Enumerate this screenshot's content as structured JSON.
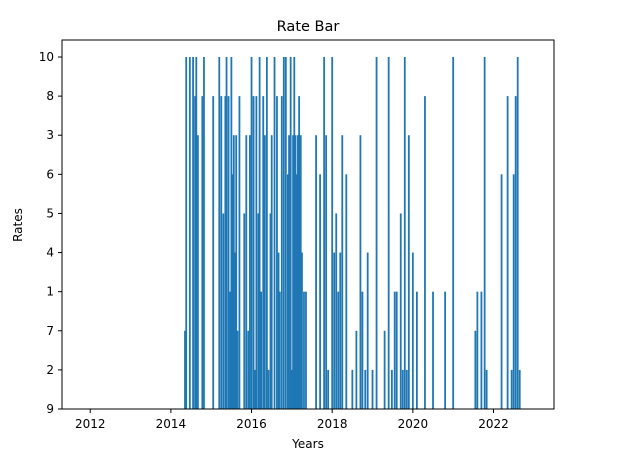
{
  "chart_data": {
    "type": "bar",
    "title": "Rate Bar",
    "xlabel": "Years",
    "ylabel": "Rates",
    "xlim": [
      2011.3,
      2023.5
    ],
    "x_ticks": [
      "2012",
      "2014",
      "2016",
      "2018",
      "2020",
      "2022"
    ],
    "x_tick_values": [
      2012,
      2014,
      2016,
      2018,
      2020,
      2022
    ],
    "y_categories": [
      "9",
      "2",
      "7",
      "1",
      "4",
      "5",
      "6",
      "3",
      "8",
      "10"
    ],
    "bar_color": "#1f77b4",
    "grid": false,
    "bars": [
      {
        "x": 2014.35,
        "y": "7"
      },
      {
        "x": 2014.38,
        "y": "10"
      },
      {
        "x": 2014.47,
        "y": "10"
      },
      {
        "x": 2014.55,
        "y": "10"
      },
      {
        "x": 2014.6,
        "y": "8"
      },
      {
        "x": 2014.63,
        "y": "10"
      },
      {
        "x": 2014.67,
        "y": "3"
      },
      {
        "x": 2014.78,
        "y": "8"
      },
      {
        "x": 2014.82,
        "y": "10"
      },
      {
        "x": 2015.05,
        "y": "8"
      },
      {
        "x": 2015.2,
        "y": "10"
      },
      {
        "x": 2015.25,
        "y": "8"
      },
      {
        "x": 2015.3,
        "y": "5"
      },
      {
        "x": 2015.35,
        "y": "8"
      },
      {
        "x": 2015.38,
        "y": "10"
      },
      {
        "x": 2015.43,
        "y": "8"
      },
      {
        "x": 2015.47,
        "y": "1"
      },
      {
        "x": 2015.5,
        "y": "10"
      },
      {
        "x": 2015.53,
        "y": "6"
      },
      {
        "x": 2015.56,
        "y": "3"
      },
      {
        "x": 2015.58,
        "y": "4"
      },
      {
        "x": 2015.62,
        "y": "3"
      },
      {
        "x": 2015.65,
        "y": "7"
      },
      {
        "x": 2015.7,
        "y": "8"
      },
      {
        "x": 2015.82,
        "y": "5"
      },
      {
        "x": 2015.87,
        "y": "3"
      },
      {
        "x": 2015.92,
        "y": "7"
      },
      {
        "x": 2015.96,
        "y": "3"
      },
      {
        "x": 2016.0,
        "y": "10"
      },
      {
        "x": 2016.05,
        "y": "8"
      },
      {
        "x": 2016.08,
        "y": "2"
      },
      {
        "x": 2016.12,
        "y": "8"
      },
      {
        "x": 2016.17,
        "y": "5"
      },
      {
        "x": 2016.2,
        "y": "10"
      },
      {
        "x": 2016.24,
        "y": "1"
      },
      {
        "x": 2016.29,
        "y": "8"
      },
      {
        "x": 2016.33,
        "y": "3"
      },
      {
        "x": 2016.38,
        "y": "10"
      },
      {
        "x": 2016.42,
        "y": "2"
      },
      {
        "x": 2016.47,
        "y": "5"
      },
      {
        "x": 2016.5,
        "y": "3"
      },
      {
        "x": 2016.57,
        "y": "10"
      },
      {
        "x": 2016.63,
        "y": "8"
      },
      {
        "x": 2016.67,
        "y": "4"
      },
      {
        "x": 2016.7,
        "y": "1"
      },
      {
        "x": 2016.75,
        "y": "8"
      },
      {
        "x": 2016.8,
        "y": "10"
      },
      {
        "x": 2016.85,
        "y": "10"
      },
      {
        "x": 2016.9,
        "y": "6"
      },
      {
        "x": 2016.93,
        "y": "3"
      },
      {
        "x": 2016.97,
        "y": "10"
      },
      {
        "x": 2017.0,
        "y": "2"
      },
      {
        "x": 2017.03,
        "y": "3"
      },
      {
        "x": 2017.06,
        "y": "10"
      },
      {
        "x": 2017.09,
        "y": "3"
      },
      {
        "x": 2017.12,
        "y": "6"
      },
      {
        "x": 2017.15,
        "y": "3"
      },
      {
        "x": 2017.18,
        "y": "8"
      },
      {
        "x": 2017.22,
        "y": "3"
      },
      {
        "x": 2017.25,
        "y": "4"
      },
      {
        "x": 2017.3,
        "y": "1"
      },
      {
        "x": 2017.35,
        "y": "1"
      },
      {
        "x": 2017.6,
        "y": "3"
      },
      {
        "x": 2017.7,
        "y": "6"
      },
      {
        "x": 2017.8,
        "y": "10"
      },
      {
        "x": 2017.85,
        "y": "3"
      },
      {
        "x": 2017.9,
        "y": "2"
      },
      {
        "x": 2018.0,
        "y": "10"
      },
      {
        "x": 2018.05,
        "y": "4"
      },
      {
        "x": 2018.1,
        "y": "5"
      },
      {
        "x": 2018.15,
        "y": "1"
      },
      {
        "x": 2018.2,
        "y": "4"
      },
      {
        "x": 2018.25,
        "y": "3"
      },
      {
        "x": 2018.35,
        "y": "6"
      },
      {
        "x": 2018.5,
        "y": "2"
      },
      {
        "x": 2018.6,
        "y": "7"
      },
      {
        "x": 2018.7,
        "y": "3"
      },
      {
        "x": 2018.75,
        "y": "1"
      },
      {
        "x": 2018.82,
        "y": "2"
      },
      {
        "x": 2018.88,
        "y": "4"
      },
      {
        "x": 2019.0,
        "y": "2"
      },
      {
        "x": 2019.1,
        "y": "10"
      },
      {
        "x": 2019.3,
        "y": "7"
      },
      {
        "x": 2019.4,
        "y": "10"
      },
      {
        "x": 2019.48,
        "y": "2"
      },
      {
        "x": 2019.55,
        "y": "1"
      },
      {
        "x": 2019.6,
        "y": "1"
      },
      {
        "x": 2019.7,
        "y": "5"
      },
      {
        "x": 2019.75,
        "y": "2"
      },
      {
        "x": 2019.8,
        "y": "10"
      },
      {
        "x": 2019.85,
        "y": "2"
      },
      {
        "x": 2019.9,
        "y": "3"
      },
      {
        "x": 2020.0,
        "y": "4"
      },
      {
        "x": 2020.1,
        "y": "1"
      },
      {
        "x": 2020.3,
        "y": "8"
      },
      {
        "x": 2020.5,
        "y": "1"
      },
      {
        "x": 2020.8,
        "y": "1"
      },
      {
        "x": 2021.0,
        "y": "10"
      },
      {
        "x": 2021.55,
        "y": "7"
      },
      {
        "x": 2021.6,
        "y": "1"
      },
      {
        "x": 2021.7,
        "y": "1"
      },
      {
        "x": 2021.78,
        "y": "10"
      },
      {
        "x": 2021.83,
        "y": "2"
      },
      {
        "x": 2022.2,
        "y": "6"
      },
      {
        "x": 2022.35,
        "y": "8"
      },
      {
        "x": 2022.45,
        "y": "2"
      },
      {
        "x": 2022.5,
        "y": "6"
      },
      {
        "x": 2022.55,
        "y": "8"
      },
      {
        "x": 2022.6,
        "y": "10"
      },
      {
        "x": 2022.65,
        "y": "2"
      }
    ]
  }
}
